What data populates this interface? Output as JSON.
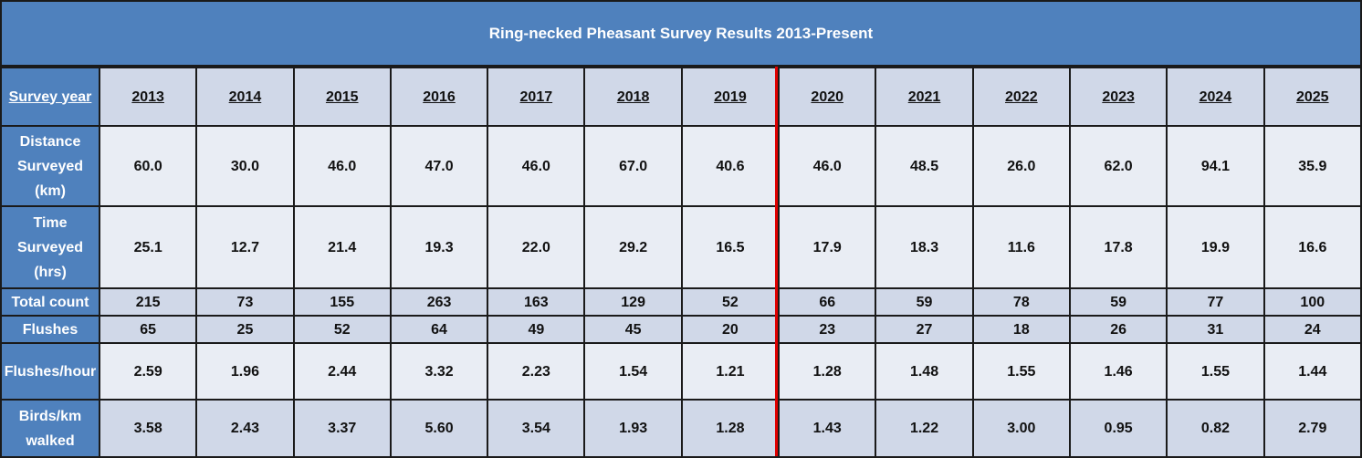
{
  "title": "Ring-necked Pheasant Survey Results 2013-Present",
  "header": {
    "label": "Survey year",
    "years": [
      "2013",
      "2014",
      "2015",
      "2016",
      "2017",
      "2018",
      "2019",
      "2020",
      "2021",
      "2022",
      "2023",
      "2024",
      "2025"
    ]
  },
  "rows": [
    {
      "label": "Distance Surveyed (km)",
      "values": [
        "60.0",
        "30.0",
        "46.0",
        "47.0",
        "46.0",
        "67.0",
        "40.6",
        "46.0",
        "48.5",
        "26.0",
        "62.0",
        "94.1",
        "35.9"
      ]
    },
    {
      "label": "Time Surveyed (hrs)",
      "values": [
        "25.1",
        "12.7",
        "21.4",
        "19.3",
        "22.0",
        "29.2",
        "16.5",
        "17.9",
        "18.3",
        "11.6",
        "17.8",
        "19.9",
        "16.6"
      ]
    },
    {
      "label": "Total count",
      "values": [
        "215",
        "73",
        "155",
        "263",
        "163",
        "129",
        "52",
        "66",
        "59",
        "78",
        "59",
        "77",
        "100"
      ]
    },
    {
      "label": "Flushes",
      "values": [
        "65",
        "25",
        "52",
        "64",
        "49",
        "45",
        "20",
        "23",
        "27",
        "18",
        "26",
        "31",
        "24"
      ]
    },
    {
      "label": "Flushes/hour",
      "values": [
        "2.59",
        "1.96",
        "2.44",
        "3.32",
        "2.23",
        "1.54",
        "1.21",
        "1.28",
        "1.48",
        "1.55",
        "1.46",
        "1.55",
        "1.44"
      ]
    },
    {
      "label": "Birds/km walked",
      "values": [
        "3.58",
        "2.43",
        "3.37",
        "5.60",
        "3.54",
        "1.93",
        "1.28",
        "1.43",
        "1.22",
        "3.00",
        "0.95",
        "0.82",
        "2.79"
      ]
    }
  ]
}
